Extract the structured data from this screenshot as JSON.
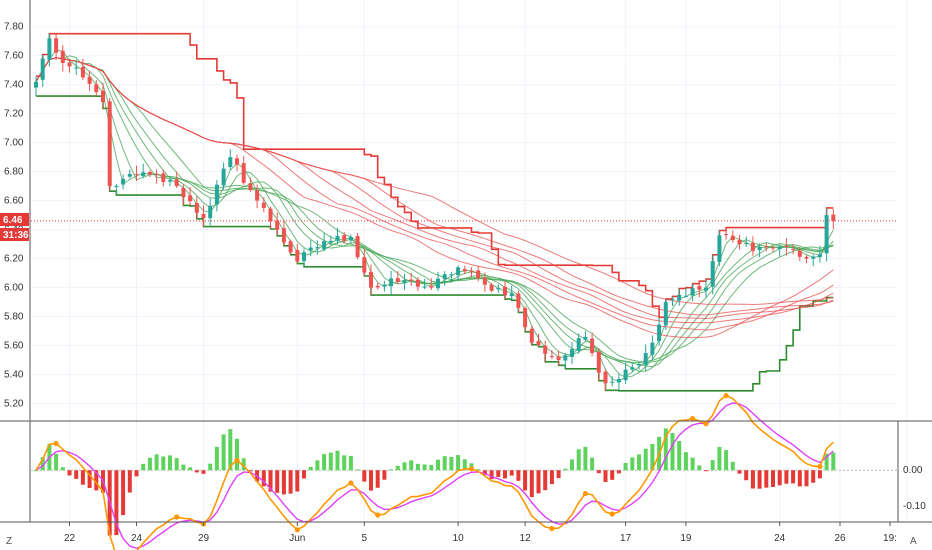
{
  "colors": {
    "up": "#26a69a",
    "down": "#ef5350",
    "ma_short": "#3fa34d",
    "ma_long": "#e84c4c",
    "band_green": "#2e8b2e",
    "band_red": "#e53935",
    "current_price_line": "#e53935",
    "hist_pos": "#5dd35d",
    "hist_neg": "#e53935",
    "osc_fast": "#ff9800",
    "osc_slow": "#e040fb",
    "osc_marker": "#ff9800",
    "grid": "#f0f3fa",
    "axis_text": "#333333",
    "badge": "#e53935"
  },
  "labels": {
    "current_price": "6.46",
    "countdown": "31:36",
    "left_axis_letter": "Z",
    "right_axis_letter": "A"
  },
  "chart_data": [
    {
      "type": "candlestick",
      "pane": "price",
      "price_scale_side": "left",
      "ylim": [
        5.1,
        7.95
      ],
      "ytick_values": [
        5.2,
        5.4,
        5.6,
        5.8,
        6.0,
        6.2,
        6.4,
        6.6,
        6.8,
        7.0,
        7.2,
        7.4,
        7.6,
        7.8
      ],
      "ytick_labels": [
        "5.20",
        "5.40",
        "5.60",
        "5.80",
        "6.00",
        "6.20",
        "6.40",
        "6.60",
        "6.80",
        "7.00",
        "7.20",
        "7.40",
        "7.60",
        "7.80"
      ],
      "x_tick_labels": [
        "22",
        "24",
        "29",
        "Jun",
        "5",
        "10",
        "12",
        "17",
        "19",
        "24",
        "26",
        "19:"
      ],
      "x_tick_bar_index": [
        5,
        15,
        25,
        39,
        49,
        63,
        73,
        88,
        97,
        111,
        120,
        130
      ],
      "current_price": 6.46,
      "grid": true,
      "keypoints": [
        [
          0,
          7.42
        ],
        [
          2,
          7.72
        ],
        [
          4,
          7.55
        ],
        [
          7,
          7.45
        ],
        [
          10,
          7.28
        ],
        [
          11,
          6.7
        ],
        [
          13,
          6.75
        ],
        [
          17,
          6.78
        ],
        [
          21,
          6.7
        ],
        [
          25,
          6.48
        ],
        [
          29,
          6.9
        ],
        [
          33,
          6.6
        ],
        [
          36,
          6.4
        ],
        [
          39,
          6.18
        ],
        [
          43,
          6.32
        ],
        [
          47,
          6.35
        ],
        [
          50,
          6.0
        ],
        [
          55,
          6.05
        ],
        [
          59,
          6.0
        ],
        [
          63,
          6.14
        ],
        [
          67,
          6.02
        ],
        [
          71,
          5.96
        ],
        [
          74,
          5.62
        ],
        [
          78,
          5.5
        ],
        [
          82,
          5.66
        ],
        [
          85,
          5.34
        ],
        [
          89,
          5.45
        ],
        [
          92,
          5.62
        ],
        [
          94,
          5.9
        ],
        [
          96,
          5.95
        ],
        [
          100,
          6.0
        ],
        [
          102,
          6.36
        ],
        [
          105,
          6.3
        ],
        [
          108,
          6.28
        ],
        [
          112,
          6.28
        ],
        [
          115,
          6.2
        ],
        [
          117,
          6.23
        ],
        [
          118,
          6.5
        ],
        [
          119,
          6.46
        ]
      ],
      "series": [
        {
          "role": "ma_short_ribbon",
          "periods": [
            3,
            5,
            8,
            10,
            12,
            15
          ]
        },
        {
          "role": "ma_long_ribbon",
          "periods": [
            30,
            35,
            40,
            45,
            50,
            60
          ]
        },
        {
          "role": "upper_band_step",
          "lookback": 20
        },
        {
          "role": "lower_band_step",
          "lookback": 20
        }
      ]
    },
    {
      "type": "oscillator",
      "pane": "indicator",
      "price_scale_side": "right",
      "ylim": [
        -0.14,
        0.13
      ],
      "ytick_values": [
        0.0,
        -0.1
      ],
      "ytick_labels": [
        "0.00",
        "-0.10"
      ],
      "series": [
        {
          "role": "histogram"
        },
        {
          "role": "fast_line"
        },
        {
          "role": "slow_line"
        }
      ]
    }
  ]
}
